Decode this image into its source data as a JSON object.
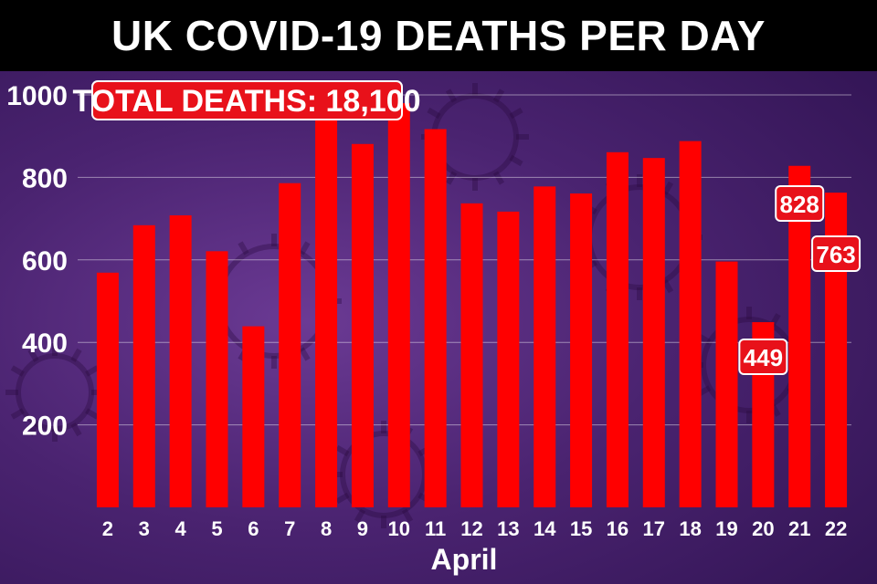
{
  "title": "UK COVID-19 DEATHS PER DAY",
  "colors": {
    "bar": "#ff0000",
    "label_box": "#e8111a",
    "background": "#4a2370",
    "title_bar": "#000000"
  },
  "chart_data": {
    "type": "bar",
    "title": "UK COVID-19 DEATHS PER DAY",
    "annotation": "TOTAL DEATHS: 18,100",
    "xlabel": "April",
    "ylabel": "",
    "ylim": [
      0,
      1000
    ],
    "yticks": [
      "200",
      "400",
      "600",
      "800",
      "1000"
    ],
    "grid": true,
    "categories": [
      "2",
      "3",
      "4",
      "5",
      "6",
      "7",
      "8",
      "9",
      "10",
      "11",
      "12",
      "13",
      "14",
      "15",
      "16",
      "17",
      "18",
      "19",
      "20",
      "21",
      "22"
    ],
    "values": [
      569,
      684,
      708,
      621,
      439,
      786,
      938,
      881,
      980,
      917,
      737,
      717,
      778,
      761,
      861,
      847,
      888,
      596,
      449,
      828,
      763
    ],
    "data_labels": [
      {
        "category": "20",
        "text": "449"
      },
      {
        "category": "21",
        "text": "828"
      },
      {
        "category": "22",
        "text": "763"
      }
    ]
  }
}
